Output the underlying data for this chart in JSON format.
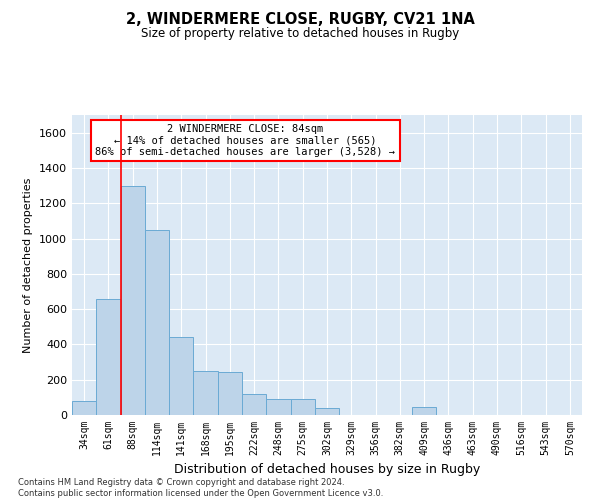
{
  "title1": "2, WINDERMERE CLOSE, RUGBY, CV21 1NA",
  "title2": "Size of property relative to detached houses in Rugby",
  "xlabel": "Distribution of detached houses by size in Rugby",
  "ylabel": "Number of detached properties",
  "bar_color": "#bdd4e9",
  "bar_edge_color": "#6aaad4",
  "background_color": "#dce9f5",
  "annotation_text": "2 WINDERMERE CLOSE: 84sqm\n← 14% of detached houses are smaller (565)\n86% of semi-detached houses are larger (3,528) →",
  "annotation_box_color": "white",
  "annotation_box_edge": "red",
  "marker_line_color": "red",
  "footer": "Contains HM Land Registry data © Crown copyright and database right 2024.\nContains public sector information licensed under the Open Government Licence v3.0.",
  "categories": [
    "34sqm",
    "61sqm",
    "88sqm",
    "114sqm",
    "141sqm",
    "168sqm",
    "195sqm",
    "222sqm",
    "248sqm",
    "275sqm",
    "302sqm",
    "329sqm",
    "356sqm",
    "382sqm",
    "409sqm",
    "436sqm",
    "463sqm",
    "490sqm",
    "516sqm",
    "543sqm",
    "570sqm"
  ],
  "values": [
    80,
    660,
    1300,
    1050,
    440,
    250,
    245,
    118,
    90,
    90,
    40,
    0,
    0,
    0,
    45,
    0,
    0,
    0,
    0,
    0,
    0
  ],
  "ylim": [
    0,
    1700
  ],
  "yticks": [
    0,
    200,
    400,
    600,
    800,
    1000,
    1200,
    1400,
    1600
  ],
  "marker_bin_index": 2,
  "figsize": [
    6.0,
    5.0
  ],
  "dpi": 100
}
